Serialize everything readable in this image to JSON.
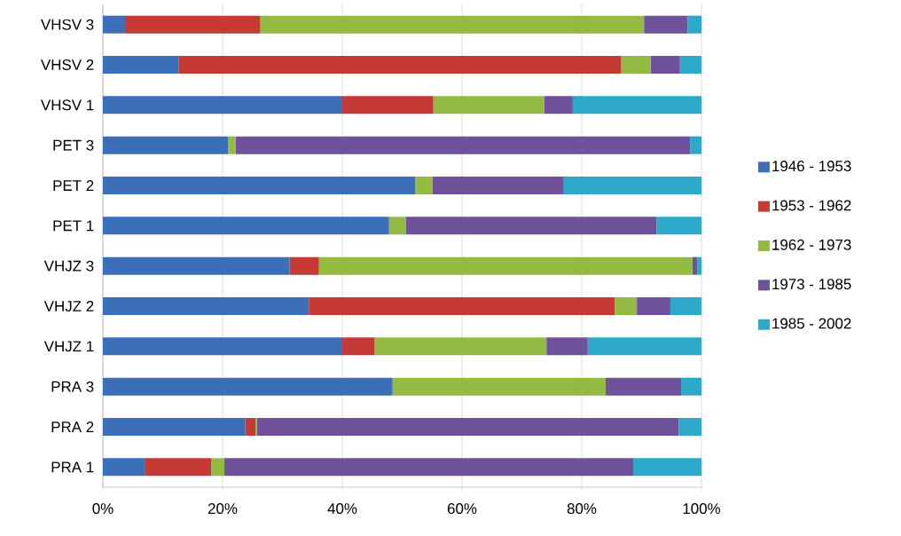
{
  "chart_data": {
    "type": "bar",
    "orientation": "horizontal",
    "stacked": true,
    "grid": "x",
    "legend": "right",
    "categories": [
      "VHSV 3",
      "VHSV 2",
      "VHSV 1",
      "PET 3",
      "PET 2",
      "PET 1",
      "VHJZ 3",
      "VHJZ 2",
      "VHJZ 1",
      "PRA 3",
      "PRA 2",
      "PRA 1"
    ],
    "xlim": [
      0,
      100
    ],
    "xticks": [
      {
        "value": 0,
        "label": "0%"
      },
      {
        "value": 20,
        "label": "20%"
      },
      {
        "value": 40,
        "label": "40%"
      },
      {
        "value": 60,
        "label": "60%"
      },
      {
        "value": 80,
        "label": "80%"
      },
      {
        "value": 100,
        "label": "100%"
      }
    ],
    "series": [
      {
        "name": "1946 - 1953",
        "color": "#3b70b8",
        "values": [
          3.7,
          12.7,
          40.0,
          20.9,
          52.2,
          47.8,
          31.2,
          34.4,
          40.0,
          48.4,
          23.8,
          7.1
        ]
      },
      {
        "name": "1953 - 1962",
        "color": "#c63a35",
        "values": [
          22.6,
          73.9,
          15.2,
          0,
          0,
          0,
          4.9,
          51.1,
          5.4,
          0,
          1.7,
          11.0
        ]
      },
      {
        "name": "1962 - 1973",
        "color": "#93ba42",
        "values": [
          64.1,
          4.9,
          18.5,
          1.3,
          2.9,
          2.8,
          62.4,
          3.7,
          28.7,
          35.6,
          0.2,
          2.2
        ]
      },
      {
        "name": "1973 - 1985",
        "color": "#70519c",
        "values": [
          7.3,
          4.9,
          4.8,
          75.9,
          21.9,
          41.9,
          0.8,
          5.6,
          6.9,
          12.6,
          70.5,
          68.3
        ]
      },
      {
        "name": "1985 - 2002",
        "color": "#2ea8c8",
        "values": [
          2.3,
          3.6,
          21.5,
          1.9,
          23.0,
          7.5,
          0.7,
          5.2,
          19.0,
          3.4,
          3.8,
          11.4
        ]
      }
    ]
  }
}
